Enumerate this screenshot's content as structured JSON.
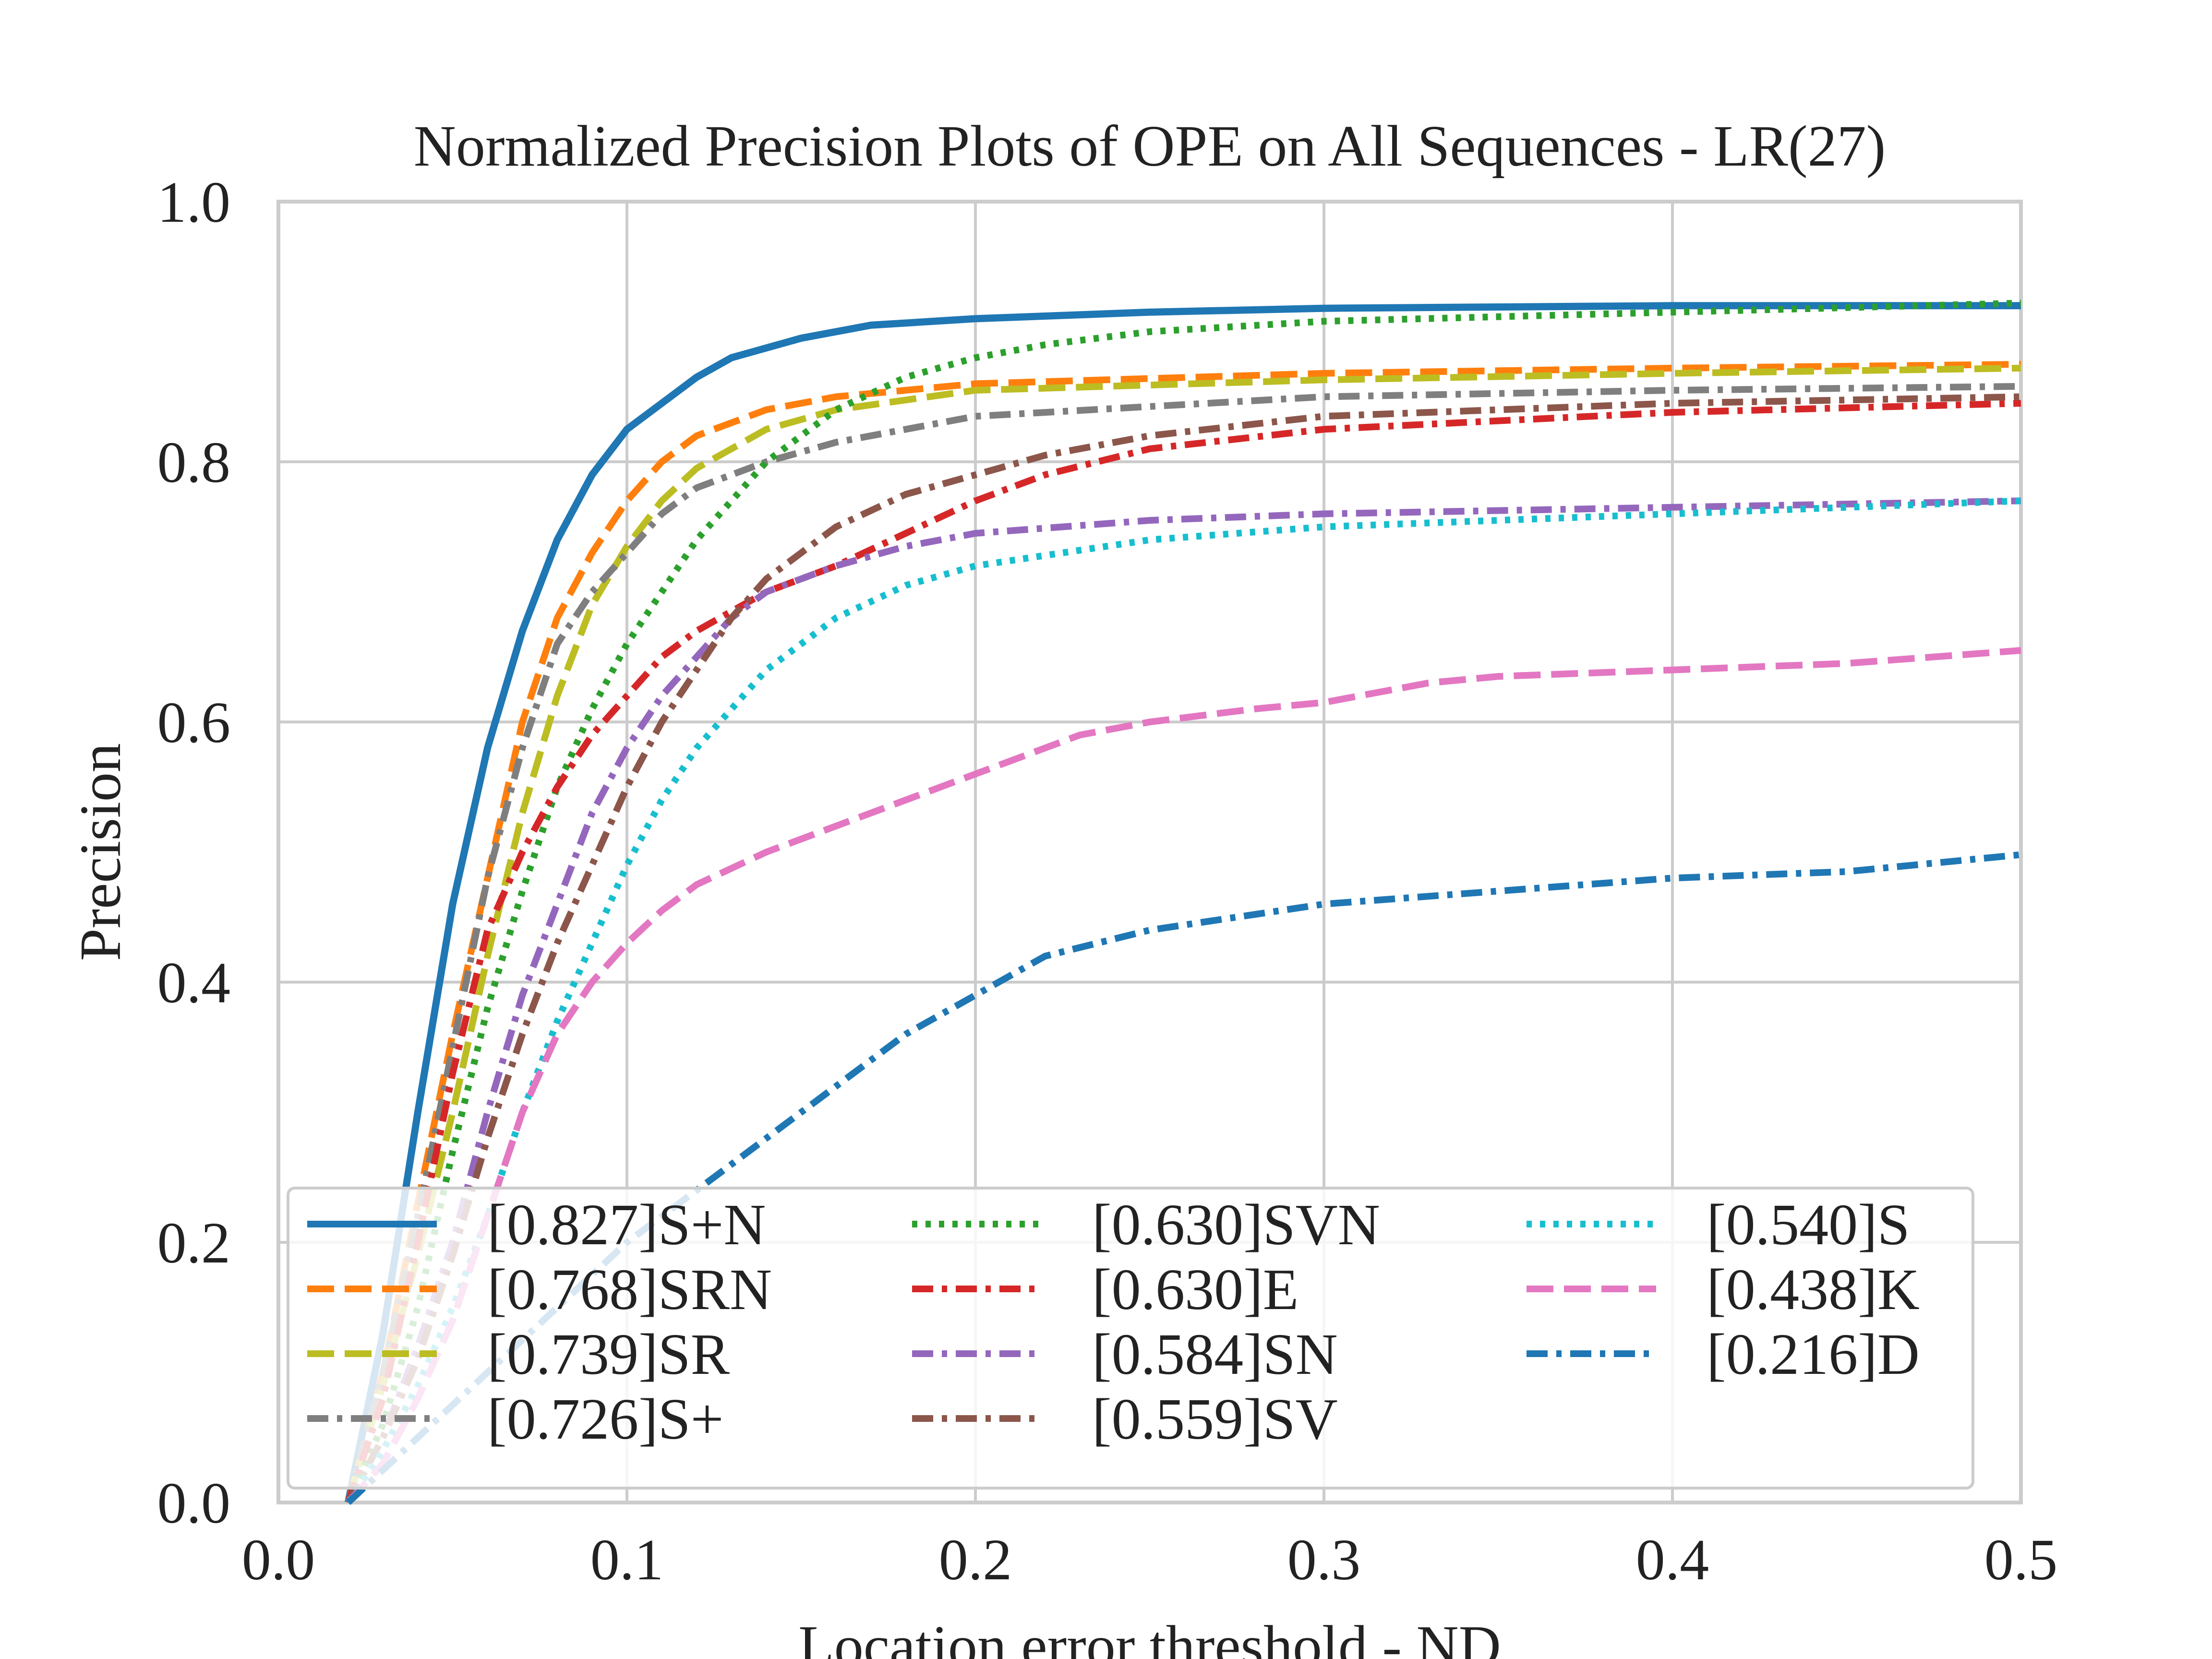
{
  "chart_data": {
    "type": "line",
    "title": "Normalized Precision Plots of OPE on All Sequences - LR(27)",
    "xlabel": "Location error threshold - ND",
    "ylabel": "Precision",
    "xlim": [
      0,
      0.5
    ],
    "ylim": [
      0,
      1
    ],
    "xticks": [
      "0.0",
      "0.1",
      "0.2",
      "0.3",
      "0.4",
      "0.5"
    ],
    "yticks": [
      "0.0",
      "0.2",
      "0.4",
      "0.6",
      "0.8",
      "1.0"
    ],
    "grid": true,
    "legend_position": "lower-center",
    "series": [
      {
        "name": "[0.827]S+N",
        "color": "#1f77b4",
        "style": "solid",
        "x": [
          0.02,
          0.03,
          0.04,
          0.05,
          0.06,
          0.07,
          0.08,
          0.09,
          0.1,
          0.12,
          0.13,
          0.15,
          0.17,
          0.2,
          0.25,
          0.3,
          0.4,
          0.5
        ],
        "y": [
          0.0,
          0.13,
          0.3,
          0.46,
          0.58,
          0.67,
          0.74,
          0.79,
          0.825,
          0.865,
          0.88,
          0.895,
          0.905,
          0.91,
          0.915,
          0.918,
          0.92,
          0.92
        ]
      },
      {
        "name": "[0.768]SRN",
        "color": "#ff7f0e",
        "style": "dashed",
        "x": [
          0.02,
          0.03,
          0.04,
          0.05,
          0.06,
          0.07,
          0.08,
          0.09,
          0.1,
          0.11,
          0.12,
          0.14,
          0.16,
          0.2,
          0.3,
          0.4,
          0.5
        ],
        "y": [
          0.0,
          0.1,
          0.23,
          0.36,
          0.48,
          0.6,
          0.68,
          0.73,
          0.77,
          0.8,
          0.82,
          0.84,
          0.85,
          0.86,
          0.868,
          0.872,
          0.875
        ]
      },
      {
        "name": "[0.739]SR",
        "color": "#bcbd22",
        "style": "dashed",
        "x": [
          0.02,
          0.03,
          0.04,
          0.05,
          0.06,
          0.07,
          0.08,
          0.09,
          0.1,
          0.11,
          0.12,
          0.14,
          0.16,
          0.2,
          0.3,
          0.4,
          0.5
        ],
        "y": [
          0.0,
          0.09,
          0.19,
          0.3,
          0.42,
          0.53,
          0.62,
          0.69,
          0.735,
          0.77,
          0.795,
          0.825,
          0.84,
          0.855,
          0.863,
          0.868,
          0.872
        ]
      },
      {
        "name": "[0.726]S+",
        "color": "#7f7f7f",
        "style": "dashdot",
        "x": [
          0.02,
          0.03,
          0.04,
          0.05,
          0.06,
          0.07,
          0.08,
          0.09,
          0.1,
          0.11,
          0.12,
          0.14,
          0.16,
          0.2,
          0.3,
          0.4,
          0.5
        ],
        "y": [
          0.0,
          0.1,
          0.22,
          0.35,
          0.48,
          0.58,
          0.66,
          0.7,
          0.73,
          0.76,
          0.78,
          0.8,
          0.815,
          0.835,
          0.85,
          0.855,
          0.858
        ]
      },
      {
        "name": "[0.630]SVN",
        "color": "#2ca02c",
        "style": "dotted",
        "x": [
          0.02,
          0.03,
          0.04,
          0.05,
          0.06,
          0.07,
          0.08,
          0.09,
          0.1,
          0.11,
          0.12,
          0.13,
          0.14,
          0.16,
          0.18,
          0.2,
          0.22,
          0.25,
          0.3,
          0.4,
          0.5
        ],
        "y": [
          0.0,
          0.06,
          0.15,
          0.27,
          0.38,
          0.47,
          0.55,
          0.61,
          0.66,
          0.7,
          0.74,
          0.77,
          0.8,
          0.84,
          0.865,
          0.88,
          0.89,
          0.9,
          0.908,
          0.915,
          0.922
        ]
      },
      {
        "name": "[0.630]E",
        "color": "#d62728",
        "style": "dashdot",
        "x": [
          0.02,
          0.03,
          0.04,
          0.05,
          0.06,
          0.07,
          0.08,
          0.09,
          0.1,
          0.11,
          0.12,
          0.14,
          0.16,
          0.18,
          0.2,
          0.22,
          0.25,
          0.3,
          0.4,
          0.5
        ],
        "y": [
          0.0,
          0.08,
          0.2,
          0.33,
          0.44,
          0.5,
          0.55,
          0.59,
          0.62,
          0.65,
          0.67,
          0.7,
          0.72,
          0.745,
          0.77,
          0.79,
          0.81,
          0.825,
          0.838,
          0.845
        ]
      },
      {
        "name": "[0.584]SN",
        "color": "#9467bd",
        "style": "dashdot",
        "x": [
          0.02,
          0.03,
          0.04,
          0.05,
          0.06,
          0.07,
          0.08,
          0.09,
          0.1,
          0.11,
          0.12,
          0.13,
          0.14,
          0.16,
          0.18,
          0.2,
          0.25,
          0.3,
          0.4,
          0.5
        ],
        "y": [
          0.0,
          0.05,
          0.12,
          0.2,
          0.3,
          0.39,
          0.46,
          0.53,
          0.58,
          0.62,
          0.65,
          0.68,
          0.7,
          0.72,
          0.735,
          0.745,
          0.755,
          0.76,
          0.765,
          0.77
        ]
      },
      {
        "name": "[0.559]SV",
        "color": "#8c564b",
        "style": "dashdot",
        "x": [
          0.02,
          0.03,
          0.04,
          0.05,
          0.06,
          0.07,
          0.08,
          0.09,
          0.1,
          0.11,
          0.12,
          0.13,
          0.14,
          0.16,
          0.18,
          0.2,
          0.22,
          0.25,
          0.3,
          0.4,
          0.5
        ],
        "y": [
          0.0,
          0.05,
          0.11,
          0.19,
          0.28,
          0.36,
          0.43,
          0.49,
          0.55,
          0.6,
          0.64,
          0.68,
          0.71,
          0.75,
          0.775,
          0.79,
          0.805,
          0.82,
          0.835,
          0.845,
          0.85
        ]
      },
      {
        "name": "[0.540]S",
        "color": "#17becf",
        "style": "dotted",
        "x": [
          0.02,
          0.03,
          0.04,
          0.05,
          0.06,
          0.07,
          0.08,
          0.09,
          0.1,
          0.11,
          0.12,
          0.13,
          0.14,
          0.15,
          0.16,
          0.18,
          0.2,
          0.25,
          0.3,
          0.4,
          0.5
        ],
        "y": [
          0.0,
          0.04,
          0.09,
          0.15,
          0.22,
          0.3,
          0.37,
          0.43,
          0.49,
          0.54,
          0.58,
          0.61,
          0.64,
          0.66,
          0.68,
          0.705,
          0.72,
          0.74,
          0.75,
          0.76,
          0.77
        ]
      },
      {
        "name": "[0.438]K",
        "color": "#e377c2",
        "style": "dashed",
        "x": [
          0.02,
          0.03,
          0.04,
          0.05,
          0.06,
          0.07,
          0.08,
          0.09,
          0.1,
          0.11,
          0.12,
          0.14,
          0.16,
          0.18,
          0.2,
          0.22,
          0.23,
          0.25,
          0.28,
          0.3,
          0.33,
          0.35,
          0.4,
          0.45,
          0.5
        ],
        "y": [
          0.0,
          0.03,
          0.08,
          0.14,
          0.22,
          0.3,
          0.36,
          0.4,
          0.43,
          0.455,
          0.475,
          0.5,
          0.52,
          0.54,
          0.56,
          0.58,
          0.59,
          0.6,
          0.61,
          0.615,
          0.63,
          0.635,
          0.64,
          0.645,
          0.655
        ]
      },
      {
        "name": "[0.216]D",
        "color": "#1f77b4",
        "style": "dashdot",
        "x": [
          0.02,
          0.04,
          0.06,
          0.08,
          0.1,
          0.12,
          0.14,
          0.16,
          0.18,
          0.2,
          0.22,
          0.25,
          0.3,
          0.35,
          0.4,
          0.45,
          0.5
        ],
        "y": [
          0.0,
          0.05,
          0.1,
          0.15,
          0.2,
          0.24,
          0.28,
          0.32,
          0.36,
          0.39,
          0.42,
          0.44,
          0.46,
          0.47,
          0.48,
          0.485,
          0.498
        ]
      }
    ]
  }
}
